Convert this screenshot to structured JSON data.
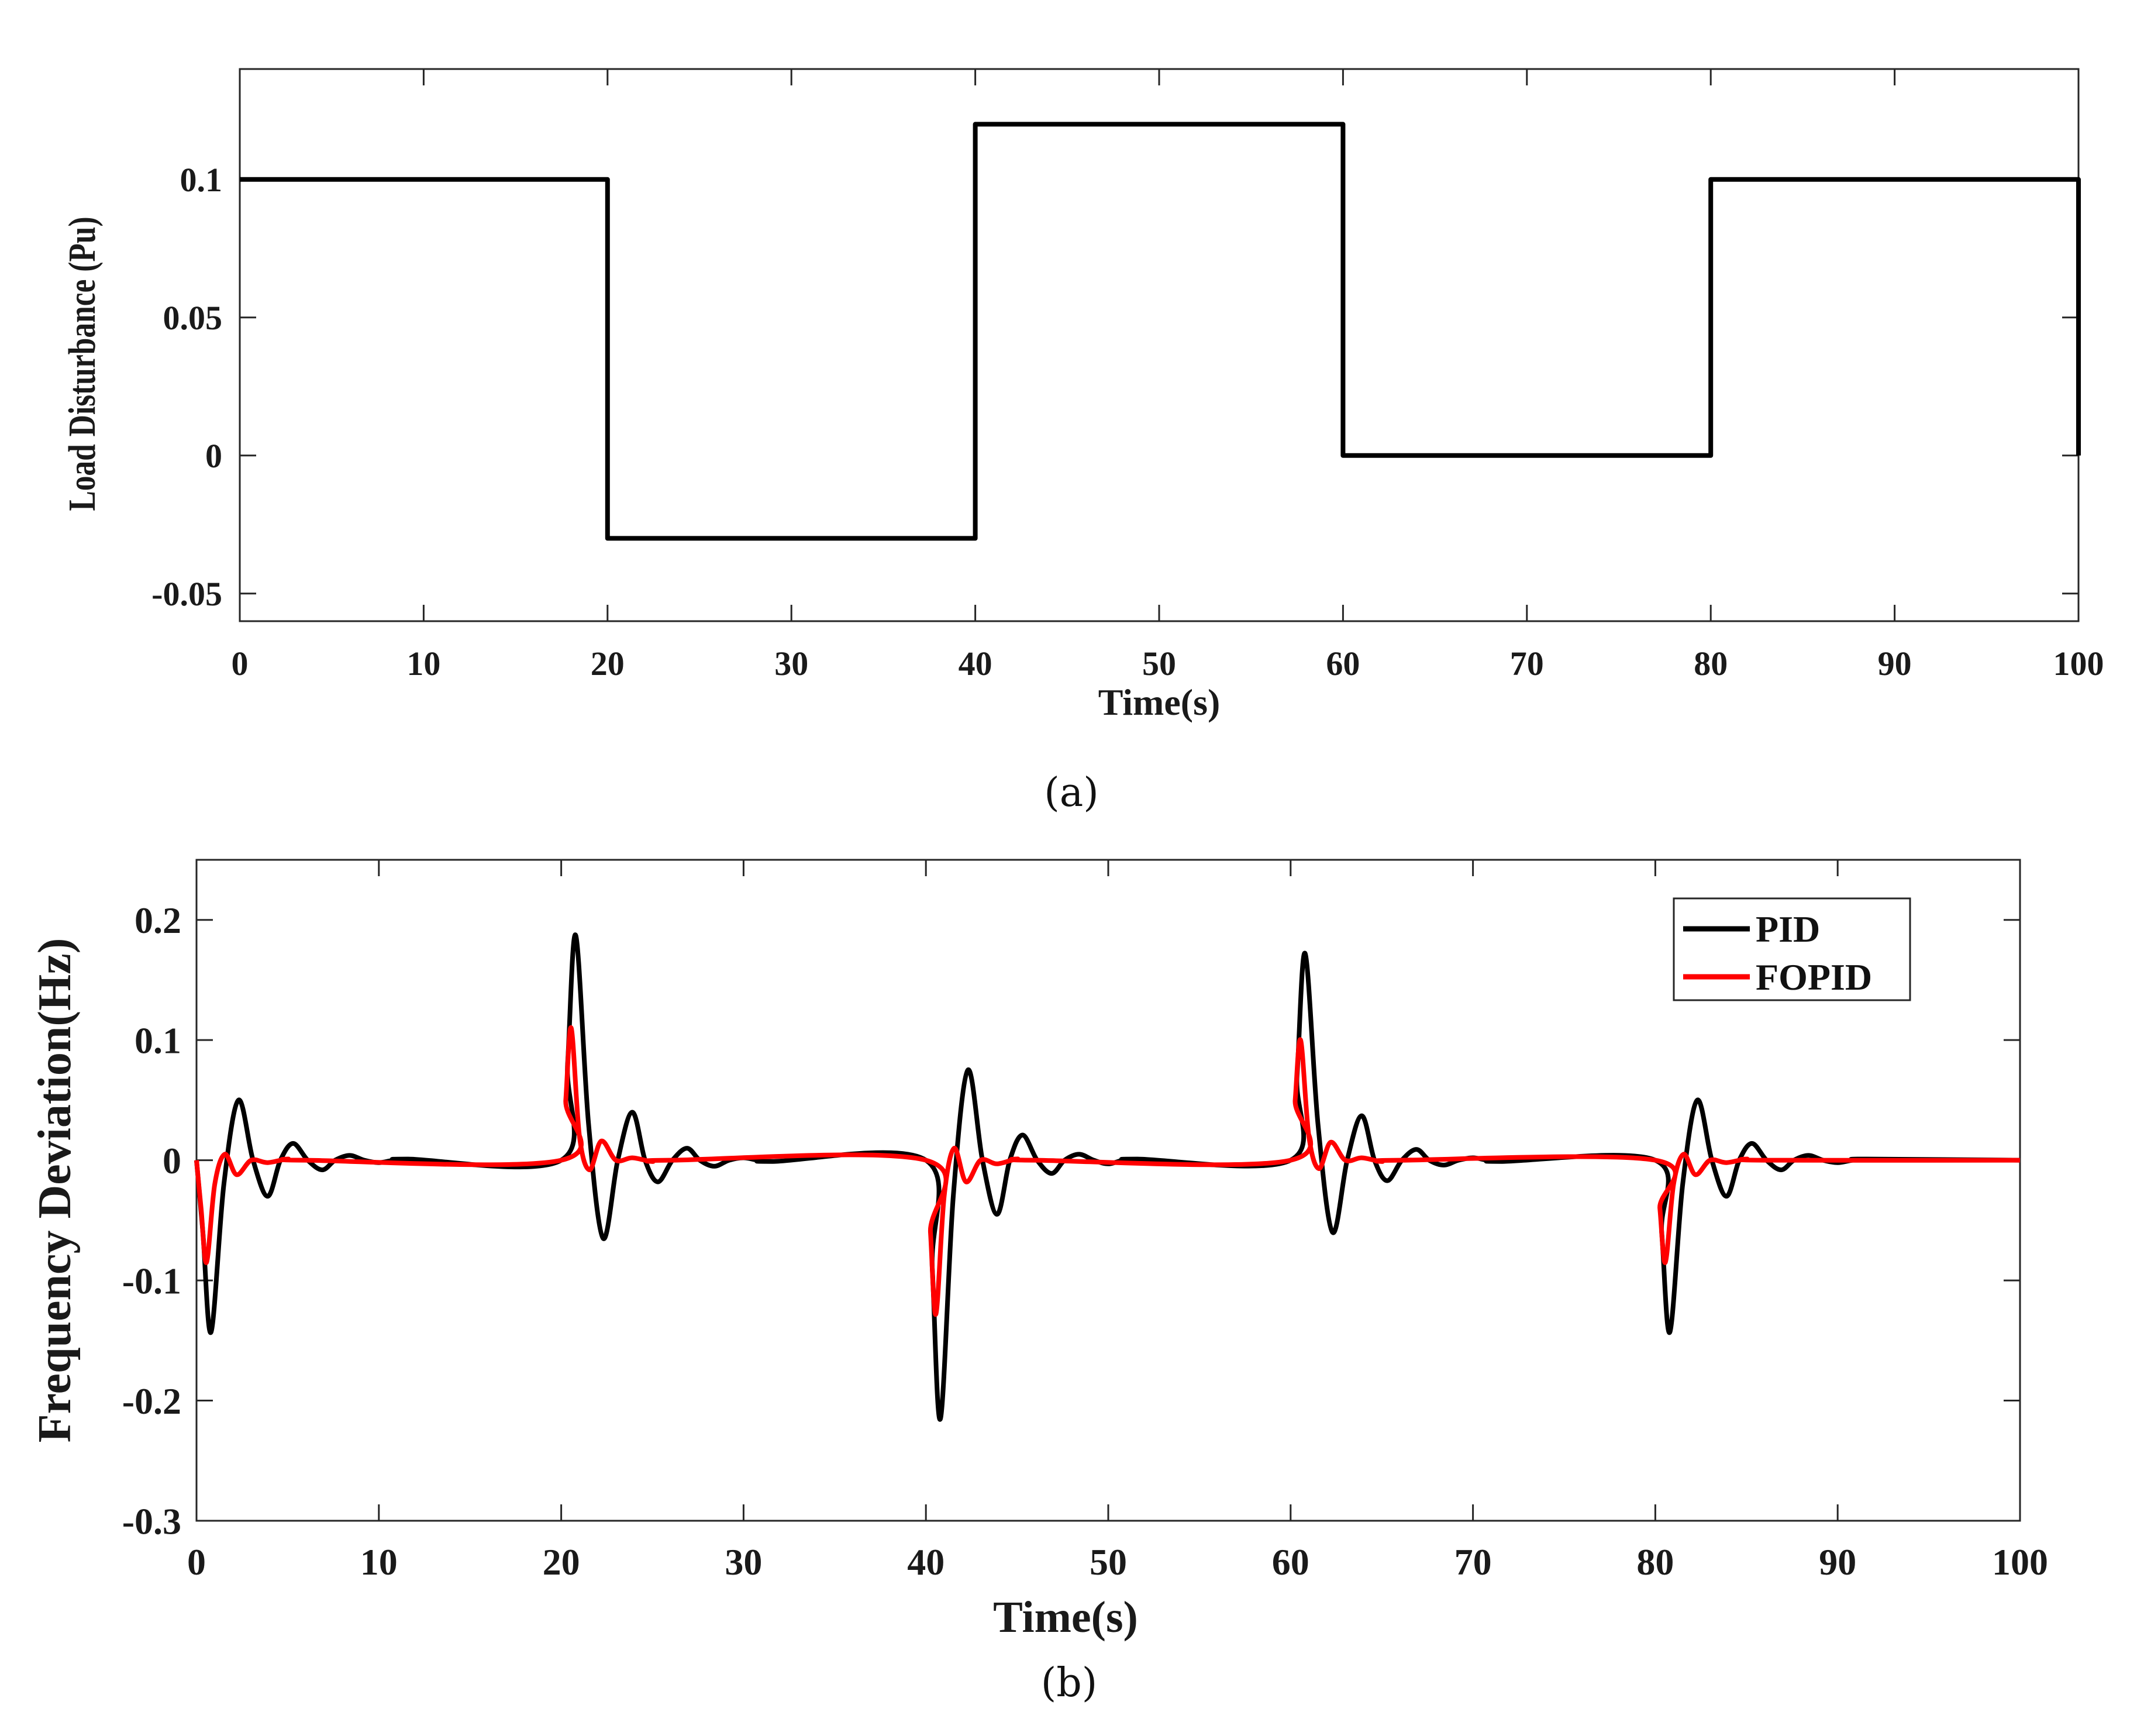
{
  "chart_data": [
    {
      "type": "line",
      "caption": "(a)",
      "title": "",
      "xlabel": "Time(s)",
      "ylabel": "Load Disturbance (Pu)",
      "xlim": [
        0,
        100
      ],
      "ylim": [
        -0.06,
        0.14
      ],
      "xticks": [
        0,
        10,
        20,
        30,
        40,
        50,
        60,
        70,
        80,
        90,
        100
      ],
      "xtick_labels": [
        "0",
        "10",
        "20",
        "30",
        "40",
        "50",
        "60",
        "70",
        "80",
        "90",
        "100"
      ],
      "yticks": [
        -0.05,
        0,
        0.05,
        0.1
      ],
      "ytick_labels": [
        "-0.05",
        "0",
        "0.05",
        "0.1"
      ],
      "grid": false,
      "series": [
        {
          "name": "Load Disturbance",
          "color": "#000000",
          "x": [
            0,
            20,
            20,
            40,
            40,
            60,
            60,
            80,
            80,
            100,
            100
          ],
          "y": [
            0.1,
            0.1,
            -0.03,
            -0.03,
            0.12,
            0.12,
            0,
            0,
            0.1,
            0.1,
            0
          ]
        }
      ]
    },
    {
      "type": "line",
      "caption": "(b)",
      "title": "",
      "xlabel": "Time(s)",
      "ylabel": "Frequency Deviation(Hz)",
      "xlim": [
        0,
        100
      ],
      "ylim": [
        -0.3,
        0.25
      ],
      "xticks": [
        0,
        10,
        20,
        30,
        40,
        50,
        60,
        70,
        80,
        90,
        100
      ],
      "xtick_labels": [
        "0",
        "10",
        "20",
        "30",
        "40",
        "50",
        "60",
        "70",
        "80",
        "90",
        "100"
      ],
      "yticks": [
        -0.3,
        -0.2,
        -0.1,
        0,
        0.1,
        0.2
      ],
      "ytick_labels": [
        "-0.3",
        "-0.2",
        "-0.1",
        "0",
        "0.1",
        "0.2"
      ],
      "grid": false,
      "legend_position": "top-right",
      "series": [
        {
          "name": "PID",
          "color": "#000000",
          "x": [
            0,
            0.35,
            0.8,
            1.5,
            2.3,
            3.1,
            3.9,
            4.6,
            5.3,
            6.1,
            6.9,
            7.6,
            8.4,
            9.2,
            10.0,
            10.8,
            11.6,
            20,
            20.35,
            20.8,
            21.5,
            22.3,
            23.1,
            23.9,
            24.6,
            25.3,
            26.1,
            26.9,
            27.6,
            28.4,
            29.2,
            30.0,
            30.8,
            31.6,
            40,
            40.35,
            40.8,
            41.5,
            42.3,
            43.1,
            43.9,
            44.6,
            45.3,
            46.1,
            46.9,
            47.6,
            48.4,
            49.2,
            50.0,
            50.8,
            51.6,
            60,
            60.35,
            60.8,
            61.5,
            62.3,
            63.1,
            63.9,
            64.6,
            65.3,
            66.1,
            66.9,
            67.6,
            68.4,
            69.2,
            70.0,
            70.8,
            71.6,
            80,
            80.35,
            80.8,
            81.5,
            82.3,
            83.1,
            83.9,
            84.6,
            85.3,
            86.1,
            86.9,
            87.6,
            88.4,
            89.2,
            90.0,
            90.8,
            91.6,
            100
          ],
          "y": [
            0,
            -0.06,
            -0.143,
            -0.02,
            0.05,
            0.0,
            -0.03,
            0.0,
            0.014,
            0.0,
            -0.008,
            0.0,
            0.004,
            0.0,
            -0.002,
            0.0,
            0.001,
            0,
            0.08,
            0.187,
            0.03,
            -0.065,
            0.0,
            0.04,
            0.0,
            -0.018,
            0.0,
            0.01,
            0.0,
            -0.005,
            0.0,
            0.002,
            0.0,
            -0.001,
            0,
            -0.09,
            -0.215,
            -0.03,
            0.075,
            0.0,
            -0.045,
            0.0,
            0.021,
            0.0,
            -0.011,
            0.0,
            0.005,
            0.0,
            -0.003,
            0.0,
            0.001,
            0,
            0.07,
            0.172,
            0.03,
            -0.06,
            0.0,
            0.037,
            0.0,
            -0.017,
            0.0,
            0.009,
            0.0,
            -0.004,
            0.0,
            0.002,
            0.0,
            -0.001,
            0,
            -0.06,
            -0.143,
            -0.02,
            0.05,
            0.0,
            -0.03,
            0.0,
            0.014,
            0.0,
            -0.008,
            0.0,
            0.004,
            0.0,
            -0.002,
            0.0,
            0.001,
            0
          ]
        },
        {
          "name": "FOPID",
          "color": "#ff0000",
          "x": [
            0,
            0.25,
            0.55,
            1.0,
            1.55,
            2.2,
            3.0,
            3.9,
            5.0,
            6.0,
            20,
            20.25,
            20.55,
            21.0,
            21.55,
            22.2,
            23.0,
            23.9,
            25.0,
            26.0,
            40,
            40.25,
            40.55,
            41.0,
            41.55,
            42.2,
            43.0,
            43.9,
            45.0,
            46.0,
            60,
            60.25,
            60.55,
            61.0,
            61.55,
            62.2,
            63.0,
            63.9,
            65.0,
            66.0,
            80,
            80.25,
            80.55,
            81.0,
            81.55,
            82.2,
            83.0,
            83.9,
            85.0,
            86.0,
            100
          ],
          "y": [
            0,
            -0.04,
            -0.085,
            -0.02,
            0.005,
            -0.012,
            0.0,
            -0.002,
            0.001,
            0.0,
            0,
            0.05,
            0.11,
            0.02,
            -0.008,
            0.016,
            0.0,
            0.002,
            -0.001,
            0.0,
            0,
            -0.06,
            -0.128,
            -0.03,
            0.01,
            -0.018,
            0.0,
            -0.003,
            0.001,
            0.0,
            0,
            0.05,
            0.1,
            0.02,
            -0.007,
            0.015,
            0.0,
            0.002,
            -0.001,
            0.0,
            0,
            -0.04,
            -0.085,
            -0.02,
            0.005,
            -0.012,
            0.0,
            -0.002,
            0.001,
            0.0,
            0
          ]
        }
      ]
    }
  ]
}
